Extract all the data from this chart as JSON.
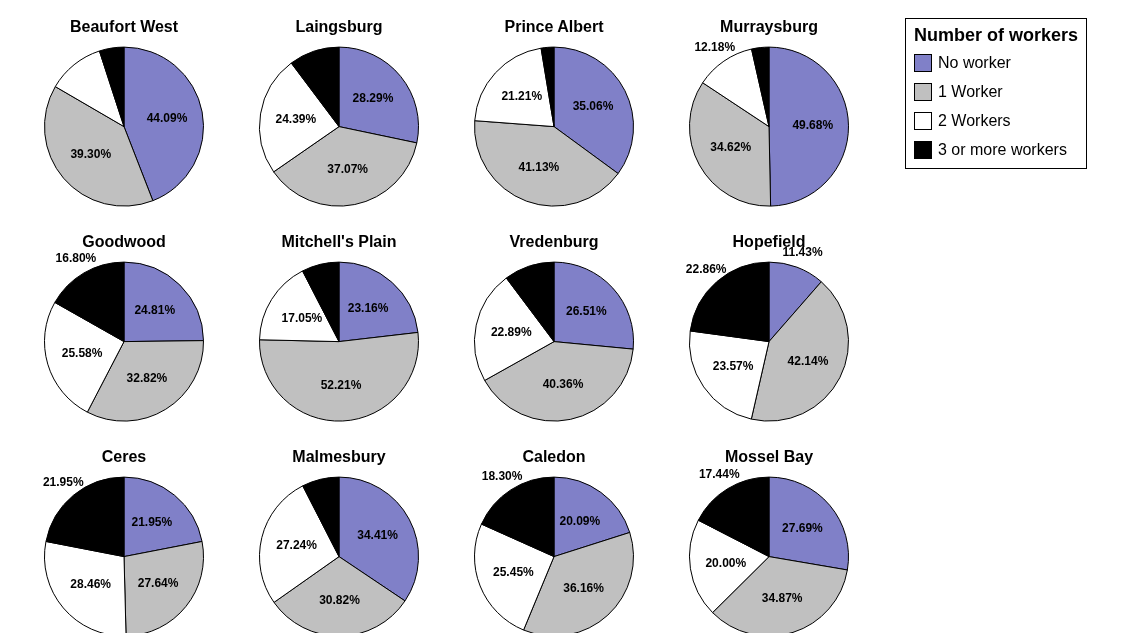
{
  "chart_data": [
    {
      "type": "pie",
      "title": "Beaufort West",
      "categories": [
        "No worker",
        "1 Worker",
        "2  Workers",
        "3 or more workers"
      ],
      "values": [
        44.09,
        39.3,
        11.61,
        5.0
      ],
      "colors": [
        "#8080c8",
        "#c0c0c0",
        "#ffffff",
        "#000000"
      ],
      "value_labels": [
        "44.09%",
        "39.30%",
        null,
        null
      ],
      "legend": "right",
      "legend_title": "Number of workers"
    },
    {
      "type": "pie",
      "title": "Laingsburg",
      "categories": [
        null,
        null,
        null,
        null
      ],
      "values": [
        28.29,
        37.07,
        24.39,
        10.25
      ],
      "colors": [
        "#8080c8",
        "#c0c0c0",
        "#ffffff",
        "#000000"
      ],
      "value_labels": [
        "28.29%",
        "37.07%",
        "24.39%",
        null
      ]
    },
    {
      "type": "pie",
      "title": "Prince Albert",
      "categories": [
        null,
        null,
        null,
        null
      ],
      "values": [
        35.06,
        41.13,
        21.21,
        2.6
      ],
      "colors": [
        "#8080c8",
        "#c0c0c0",
        "#ffffff",
        "#000000"
      ],
      "value_labels": [
        "35.06%",
        "41.13%",
        "21.21%",
        null
      ]
    },
    {
      "type": "pie",
      "title": "Murraysburg",
      "categories": [
        null,
        null,
        null,
        null
      ],
      "values": [
        49.68,
        34.62,
        12.18,
        3.52
      ],
      "colors": [
        "#8080c8",
        "#c0c0c0",
        "#ffffff",
        "#000000"
      ],
      "value_labels": [
        "49.68%",
        "34.62%",
        "12.18%",
        null
      ]
    },
    {
      "type": "pie",
      "title": "Goodwood",
      "categories": [
        null,
        null,
        null,
        null
      ],
      "values": [
        24.81,
        32.82,
        25.58,
        16.8
      ],
      "colors": [
        "#8080c8",
        "#c0c0c0",
        "#ffffff",
        "#000000"
      ],
      "value_labels": [
        "24.81%",
        "32.82%",
        "25.58%",
        "16.80%"
      ]
    },
    {
      "type": "pie",
      "title": "Mitchell's Plain",
      "categories": [
        null,
        null,
        null,
        null
      ],
      "values": [
        23.16,
        52.21,
        17.05,
        7.58
      ],
      "colors": [
        "#8080c8",
        "#c0c0c0",
        "#ffffff",
        "#000000"
      ],
      "value_labels": [
        "23.16%",
        "52.21%",
        "17.05%",
        null
      ]
    },
    {
      "type": "pie",
      "title": "Vredenburg",
      "categories": [
        null,
        null,
        null,
        null
      ],
      "values": [
        26.51,
        40.36,
        22.89,
        10.24
      ],
      "colors": [
        "#8080c8",
        "#c0c0c0",
        "#ffffff",
        "#000000"
      ],
      "value_labels": [
        "26.51%",
        "40.36%",
        "22.89%",
        null
      ]
    },
    {
      "type": "pie",
      "title": "Hopefield",
      "categories": [
        null,
        null,
        null,
        null
      ],
      "values": [
        11.43,
        42.14,
        23.57,
        22.86
      ],
      "colors": [
        "#8080c8",
        "#c0c0c0",
        "#ffffff",
        "#000000"
      ],
      "value_labels": [
        "11.43%",
        "42.14%",
        "23.57%",
        "22.86%"
      ]
    },
    {
      "type": "pie",
      "title": "Ceres",
      "categories": [
        null,
        null,
        null,
        null
      ],
      "values": [
        21.95,
        27.64,
        28.46,
        21.95
      ],
      "colors": [
        "#8080c8",
        "#c0c0c0",
        "#ffffff",
        "#000000"
      ],
      "value_labels": [
        "21.95%",
        "27.64%",
        "28.46%",
        "21.95%"
      ]
    },
    {
      "type": "pie",
      "title": "Malmesbury",
      "categories": [
        null,
        null,
        null,
        null
      ],
      "values": [
        34.41,
        30.82,
        27.24,
        7.53
      ],
      "colors": [
        "#8080c8",
        "#c0c0c0",
        "#ffffff",
        "#000000"
      ],
      "value_labels": [
        "34.41%",
        "30.82%",
        "27.24%",
        null
      ]
    },
    {
      "type": "pie",
      "title": "Caledon",
      "categories": [
        null,
        null,
        null,
        null
      ],
      "values": [
        20.09,
        36.16,
        25.45,
        18.3
      ],
      "colors": [
        "#8080c8",
        "#c0c0c0",
        "#ffffff",
        "#000000"
      ],
      "value_labels": [
        "20.09%",
        "36.16%",
        "25.45%",
        "18.30%"
      ]
    },
    {
      "type": "pie",
      "title": "Mossel Bay",
      "categories": [
        null,
        null,
        null,
        null
      ],
      "values": [
        27.69,
        34.87,
        20.0,
        17.44
      ],
      "colors": [
        "#8080c8",
        "#c0c0c0",
        "#ffffff",
        "#000000"
      ],
      "value_labels": [
        "27.69%",
        "34.87%",
        "20.00%",
        "17.44%"
      ]
    }
  ]
}
